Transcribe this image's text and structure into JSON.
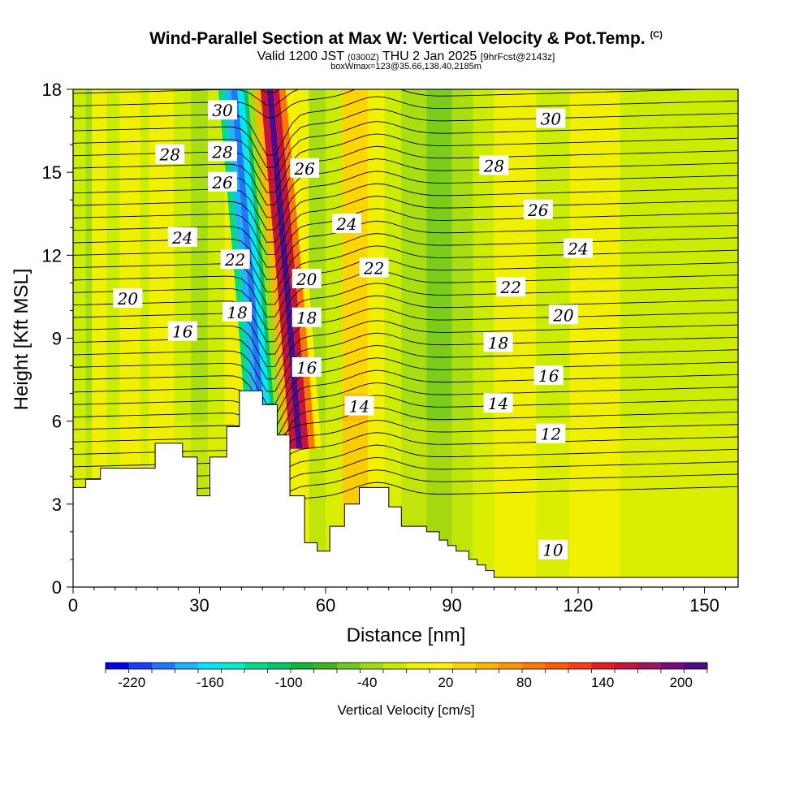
{
  "header": {
    "title": "Wind-Parallel Section at Max W: Vertical Velocity & Pot.Temp.",
    "copyright": "(C)",
    "valid_prefix": "Valid 1200 JST",
    "valid_utc": "(0300Z)",
    "valid_day": "THU 2 Jan 2025",
    "forecast": "[9hrFcst@2143z]",
    "box_info": "boxWmax=123@35.66,138.40,2185m"
  },
  "chart_data": {
    "type": "heatmap",
    "xlabel": "Distance [nm]",
    "ylabel": "Height [Kft MSL]",
    "xlim": [
      0,
      158
    ],
    "ylim": [
      0,
      18
    ],
    "x_ticks": [
      0,
      30,
      60,
      90,
      120,
      150
    ],
    "y_ticks": [
      0,
      3,
      6,
      9,
      12,
      15,
      18
    ],
    "colorbar": {
      "label": "Vertical Velocity [cm/s]",
      "range": [
        -240,
        220
      ],
      "tick_labels": [
        "-220",
        "-160",
        "-100",
        "-40",
        "20",
        "80",
        "140",
        "200"
      ],
      "tick_values": [
        -220,
        -160,
        -100,
        -40,
        20,
        80,
        140,
        200
      ],
      "colors": [
        "#0000ee",
        "#1a3aff",
        "#1e78ff",
        "#1eb4ff",
        "#00e6ff",
        "#00f0c8",
        "#00dc8c",
        "#00c864",
        "#12b43c",
        "#3cb41e",
        "#6ec81e",
        "#a0dc14",
        "#c8ec00",
        "#f0f000",
        "#fff000",
        "#ffd200",
        "#ffb400",
        "#ff9600",
        "#ff7800",
        "#ff5a00",
        "#ff3c14",
        "#e61e1e",
        "#c8143c",
        "#a01460",
        "#780a80",
        "#500a8c"
      ]
    },
    "terrain_profile": {
      "distance_nm": [
        0,
        3,
        3,
        6.5,
        6.5,
        9.5,
        9.5,
        19.5,
        19.5,
        26,
        26,
        29.5,
        29.5,
        32.5,
        32.5,
        36.5,
        36.5,
        39.5,
        39.5,
        45,
        45,
        48.5,
        48.5,
        51.5,
        51.5,
        55,
        55,
        58,
        58,
        61,
        61,
        64.5,
        64.5,
        68,
        68,
        75,
        75,
        78,
        78,
        84,
        84,
        87,
        87,
        89,
        89,
        91,
        91,
        94,
        94,
        96,
        96,
        98,
        98,
        100,
        100,
        102,
        102,
        158
      ],
      "height_kft": [
        3.6,
        3.6,
        3.9,
        3.9,
        4.3,
        4.3,
        4.3,
        4.3,
        5.2,
        5.2,
        4.7,
        4.7,
        3.3,
        3.3,
        4.7,
        4.7,
        5.8,
        5.8,
        7.1,
        7.1,
        6.6,
        6.6,
        5.5,
        5.5,
        3.3,
        3.3,
        1.6,
        1.6,
        1.3,
        1.3,
        2.2,
        2.2,
        3.0,
        3.0,
        3.6,
        3.6,
        2.9,
        2.9,
        2.2,
        2.2,
        2.0,
        2.0,
        1.7,
        1.7,
        1.5,
        1.5,
        1.3,
        1.3,
        1.0,
        1.0,
        0.8,
        0.8,
        0.6,
        0.6,
        0.35,
        0.35,
        0.35,
        0.35
      ]
    },
    "theta_contours": {
      "levels_K": [
        10,
        11,
        12,
        13,
        14,
        15,
        16,
        17,
        18,
        19,
        20,
        21,
        22,
        23,
        24,
        25,
        26,
        27,
        28,
        29,
        30,
        31
      ],
      "labels": [
        {
          "text": "30",
          "x": 35.5,
          "y": 17.2
        },
        {
          "text": "28",
          "x": 23,
          "y": 15.6
        },
        {
          "text": "28",
          "x": 35.5,
          "y": 15.7
        },
        {
          "text": "26",
          "x": 35.5,
          "y": 14.6
        },
        {
          "text": "24",
          "x": 26,
          "y": 12.6
        },
        {
          "text": "22",
          "x": 38.5,
          "y": 11.8
        },
        {
          "text": "20",
          "x": 13,
          "y": 10.4
        },
        {
          "text": "18",
          "x": 39,
          "y": 9.9
        },
        {
          "text": "16",
          "x": 26,
          "y": 9.2
        },
        {
          "text": "26",
          "x": 55,
          "y": 15.1
        },
        {
          "text": "24",
          "x": 65,
          "y": 13.1
        },
        {
          "text": "20",
          "x": 55.5,
          "y": 11.1
        },
        {
          "text": "22",
          "x": 71.5,
          "y": 11.5
        },
        {
          "text": "18",
          "x": 55.5,
          "y": 9.7
        },
        {
          "text": "16",
          "x": 55.5,
          "y": 7.9
        },
        {
          "text": "14",
          "x": 68,
          "y": 6.5
        },
        {
          "text": "30",
          "x": 113.5,
          "y": 16.9
        },
        {
          "text": "28",
          "x": 100,
          "y": 15.2
        },
        {
          "text": "26",
          "x": 110.5,
          "y": 13.6
        },
        {
          "text": "24",
          "x": 120,
          "y": 12.2
        },
        {
          "text": "22",
          "x": 104,
          "y": 10.8
        },
        {
          "text": "20",
          "x": 116.5,
          "y": 9.8
        },
        {
          "text": "18",
          "x": 101,
          "y": 8.8
        },
        {
          "text": "16",
          "x": 113,
          "y": 7.6
        },
        {
          "text": "14",
          "x": 101,
          "y": 6.6
        },
        {
          "text": "12",
          "x": 113.5,
          "y": 5.5
        },
        {
          "text": "10",
          "x": 114,
          "y": 1.3
        }
      ]
    },
    "w_columns_cm_s": [
      {
        "x_nm": [
          0,
          38
        ],
        "w": 0
      },
      {
        "x_nm": [
          38.5,
          40
        ],
        "w": -120
      },
      {
        "x_nm": [
          40,
          41.5
        ],
        "w": -180
      },
      {
        "x_nm": [
          41.5,
          43
        ],
        "w": -200
      },
      {
        "x_nm": [
          43,
          44.5
        ],
        "w": -160
      },
      {
        "x_nm": [
          44.5,
          45.5
        ],
        "w": -100
      },
      {
        "x_nm": [
          45.5,
          47
        ],
        "w": -40
      },
      {
        "x_nm": [
          47,
          48.5
        ],
        "w": 60
      },
      {
        "x_nm": [
          48.5,
          50
        ],
        "w": 160
      },
      {
        "x_nm": [
          50,
          51.5
        ],
        "w": 210
      },
      {
        "x_nm": [
          51.5,
          53
        ],
        "w": 150
      },
      {
        "x_nm": [
          53,
          54.5
        ],
        "w": 80
      },
      {
        "x_nm": [
          54.5,
          56
        ],
        "w": 20
      }
    ]
  }
}
